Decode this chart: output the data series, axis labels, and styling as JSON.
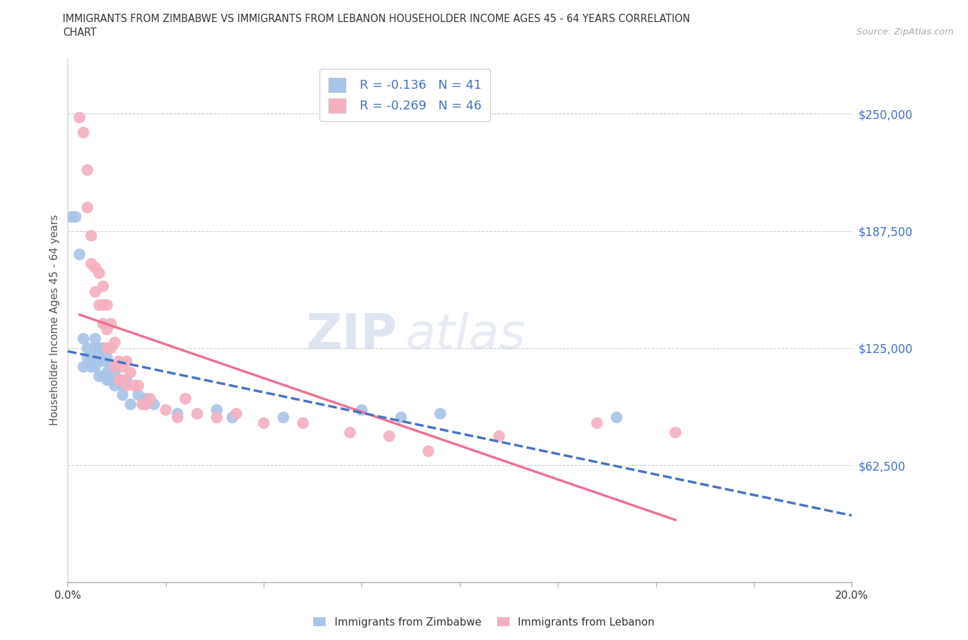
{
  "title_line1": "IMMIGRANTS FROM ZIMBABWE VS IMMIGRANTS FROM LEBANON HOUSEHOLDER INCOME AGES 45 - 64 YEARS CORRELATION",
  "title_line2": "CHART",
  "source": "Source: ZipAtlas.com",
  "ylabel": "Householder Income Ages 45 - 64 years",
  "xlim": [
    0.0,
    0.2
  ],
  "ylim": [
    0,
    280000
  ],
  "yticks": [
    62500,
    125000,
    187500,
    250000
  ],
  "ytick_labels": [
    "$62,500",
    "$125,000",
    "$187,500",
    "$250,000"
  ],
  "xticks": [
    0.0,
    0.025,
    0.05,
    0.075,
    0.1,
    0.125,
    0.15,
    0.175,
    0.2
  ],
  "legend_r_zimbabwe": "R = -0.136",
  "legend_n_zimbabwe": "N = 41",
  "legend_r_lebanon": "R = -0.269",
  "legend_n_lebanon": "N = 46",
  "zimbabwe_color": "#a8c4e8",
  "lebanon_color": "#f4b0c0",
  "trendline_zimbabwe_color": "#4472c4",
  "trendline_lebanon_color": "#f07090",
  "zimbabwe_x": [
    0.001,
    0.002,
    0.003,
    0.004,
    0.004,
    0.005,
    0.005,
    0.006,
    0.006,
    0.007,
    0.007,
    0.007,
    0.008,
    0.008,
    0.008,
    0.009,
    0.009,
    0.009,
    0.01,
    0.01,
    0.01,
    0.011,
    0.011,
    0.012,
    0.012,
    0.013,
    0.014,
    0.014,
    0.015,
    0.016,
    0.018,
    0.02,
    0.022,
    0.028,
    0.038,
    0.042,
    0.055,
    0.075,
    0.085,
    0.095,
    0.14
  ],
  "zimbabwe_y": [
    195000,
    195000,
    175000,
    130000,
    115000,
    125000,
    120000,
    120000,
    115000,
    130000,
    125000,
    115000,
    125000,
    120000,
    110000,
    125000,
    118000,
    110000,
    120000,
    112000,
    108000,
    115000,
    108000,
    112000,
    105000,
    108000,
    105000,
    100000,
    108000,
    95000,
    100000,
    98000,
    95000,
    90000,
    92000,
    88000,
    88000,
    92000,
    88000,
    90000,
    88000
  ],
  "lebanon_x": [
    0.003,
    0.004,
    0.005,
    0.005,
    0.006,
    0.006,
    0.007,
    0.007,
    0.008,
    0.008,
    0.009,
    0.009,
    0.009,
    0.01,
    0.01,
    0.01,
    0.011,
    0.011,
    0.012,
    0.012,
    0.013,
    0.013,
    0.014,
    0.014,
    0.015,
    0.015,
    0.016,
    0.017,
    0.018,
    0.019,
    0.02,
    0.021,
    0.025,
    0.028,
    0.03,
    0.033,
    0.038,
    0.043,
    0.05,
    0.06,
    0.072,
    0.082,
    0.092,
    0.11,
    0.135,
    0.155
  ],
  "lebanon_y": [
    248000,
    240000,
    220000,
    200000,
    185000,
    170000,
    168000,
    155000,
    165000,
    148000,
    158000,
    148000,
    138000,
    148000,
    135000,
    125000,
    138000,
    125000,
    128000,
    115000,
    118000,
    108000,
    115000,
    108000,
    118000,
    105000,
    112000,
    105000,
    105000,
    95000,
    95000,
    98000,
    92000,
    88000,
    98000,
    90000,
    88000,
    90000,
    85000,
    85000,
    80000,
    78000,
    70000,
    78000,
    85000,
    80000
  ]
}
